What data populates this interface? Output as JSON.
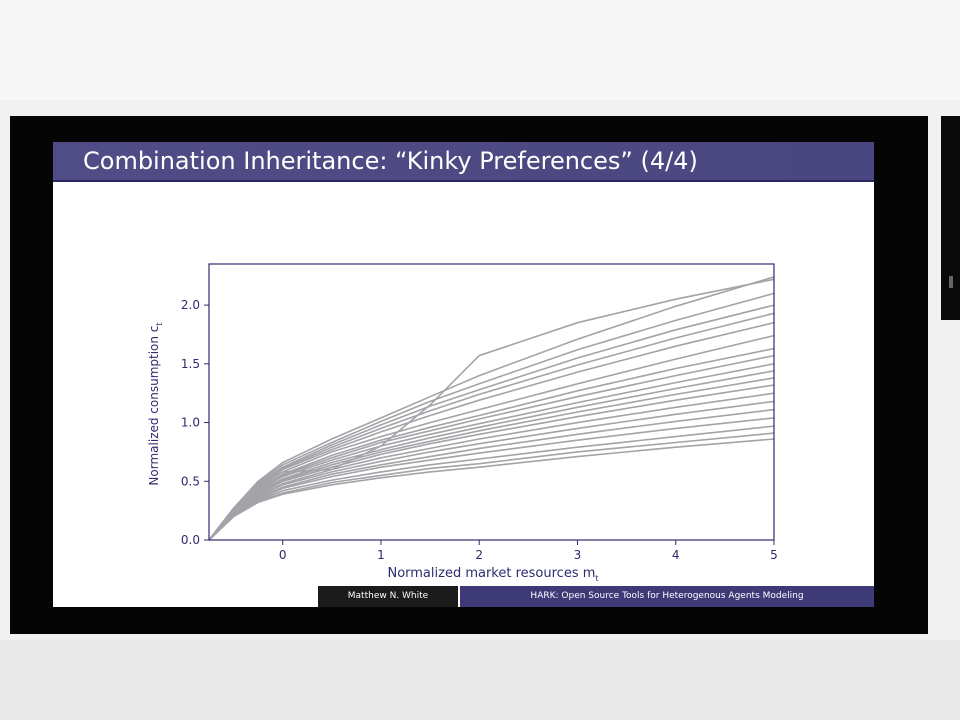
{
  "slide": {
    "title": "Combination Inheritance:  “Kinky Preferences” (4/4)",
    "footer_author": "Matthew N. White",
    "footer_talk": "HARK: Open Source Tools for Heterogenous Agents Modeling"
  },
  "colors": {
    "title_bar": "#504c86",
    "footer_right": "#3e3a78",
    "axes": "#2e2b6e",
    "curve": "#a3a3a8"
  },
  "chart_data": {
    "type": "line",
    "xlabel": "Normalized market resources m",
    "xlabel_sub": "t",
    "ylabel": "Normalized consumption c",
    "ylabel_sub": "t",
    "xlim": [
      -0.75,
      5
    ],
    "ylim": [
      0,
      2.35
    ],
    "xticks": [
      0,
      1,
      2,
      3,
      4,
      5
    ],
    "yticks": [
      0.0,
      0.5,
      1.0,
      1.5,
      2.0
    ],
    "xtick_labels": [
      "0",
      "1",
      "2",
      "3",
      "4",
      "5"
    ],
    "ytick_labels": [
      "0.0",
      "0.5",
      "1.0",
      "1.5",
      "2.0"
    ],
    "grid": false,
    "x": [
      -0.75,
      -0.5,
      -0.25,
      0,
      0.5,
      1,
      1.5,
      2,
      3,
      4,
      5
    ],
    "series": [
      {
        "values": [
          0,
          0.27,
          0.5,
          0.66,
          0.86,
          1.04,
          1.22,
          1.4,
          1.71,
          1.99,
          2.24
        ]
      },
      {
        "values": [
          0,
          0.27,
          0.49,
          0.64,
          0.83,
          1.01,
          1.18,
          1.33,
          1.62,
          1.87,
          2.1
        ]
      },
      {
        "values": [
          0,
          0.26,
          0.48,
          0.62,
          0.81,
          0.98,
          1.14,
          1.28,
          1.55,
          1.79,
          2.0
        ]
      },
      {
        "values": [
          0,
          0.26,
          0.47,
          0.61,
          0.79,
          0.95,
          1.1,
          1.24,
          1.49,
          1.72,
          1.93
        ]
      },
      {
        "values": [
          0,
          0.26,
          0.46,
          0.6,
          0.77,
          0.92,
          1.06,
          1.19,
          1.43,
          1.65,
          1.85
        ]
      },
      {
        "values": [
          0,
          0.25,
          0.45,
          0.58,
          0.75,
          0.88,
          1.0,
          1.11,
          1.33,
          1.54,
          1.74
        ]
      },
      {
        "values": [
          0,
          0.25,
          0.44,
          0.56,
          0.72,
          0.85,
          0.96,
          1.06,
          1.27,
          1.46,
          1.63
        ]
      },
      {
        "values": [
          0,
          0.25,
          0.43,
          0.55,
          0.7,
          0.83,
          0.93,
          1.03,
          1.22,
          1.4,
          1.57
        ]
      },
      {
        "values": [
          0,
          0.24,
          0.42,
          0.54,
          0.68,
          0.8,
          0.9,
          0.99,
          1.17,
          1.34,
          1.5
        ]
      },
      {
        "values": [
          0,
          0.24,
          0.41,
          0.52,
          0.66,
          0.77,
          0.87,
          0.96,
          1.13,
          1.29,
          1.44
        ]
      },
      {
        "values": [
          0,
          0.24,
          0.4,
          0.51,
          0.64,
          0.75,
          0.84,
          0.93,
          1.09,
          1.24,
          1.38
        ]
      },
      {
        "values": [
          0,
          0.23,
          0.39,
          0.5,
          0.62,
          0.73,
          0.82,
          0.9,
          1.05,
          1.19,
          1.32
        ]
      },
      {
        "values": [
          0,
          0.23,
          0.38,
          0.48,
          0.6,
          0.7,
          0.78,
          0.86,
          1.0,
          1.13,
          1.25
        ]
      },
      {
        "values": [
          0,
          0.22,
          0.37,
          0.47,
          0.58,
          0.67,
          0.75,
          0.82,
          0.95,
          1.07,
          1.18
        ]
      },
      {
        "values": [
          0,
          0.22,
          0.36,
          0.45,
          0.56,
          0.64,
          0.71,
          0.78,
          0.9,
          1.01,
          1.11
        ]
      },
      {
        "values": [
          0,
          0.21,
          0.35,
          0.44,
          0.54,
          0.62,
          0.68,
          0.74,
          0.85,
          0.95,
          1.04
        ]
      },
      {
        "values": [
          0,
          0.21,
          0.34,
          0.42,
          0.51,
          0.58,
          0.64,
          0.69,
          0.79,
          0.88,
          0.97
        ]
      },
      {
        "values": [
          0,
          0.2,
          0.33,
          0.4,
          0.49,
          0.55,
          0.61,
          0.65,
          0.75,
          0.83,
          0.91
        ]
      },
      {
        "values": [
          0,
          0.2,
          0.32,
          0.39,
          0.47,
          0.53,
          0.58,
          0.62,
          0.71,
          0.79,
          0.86
        ]
      },
      {
        "values": [
          0,
          0.27,
          0.47,
          0.58,
          0.6,
          0.8,
          1.15,
          1.57,
          1.85,
          2.05,
          2.22
        ]
      }
    ]
  }
}
